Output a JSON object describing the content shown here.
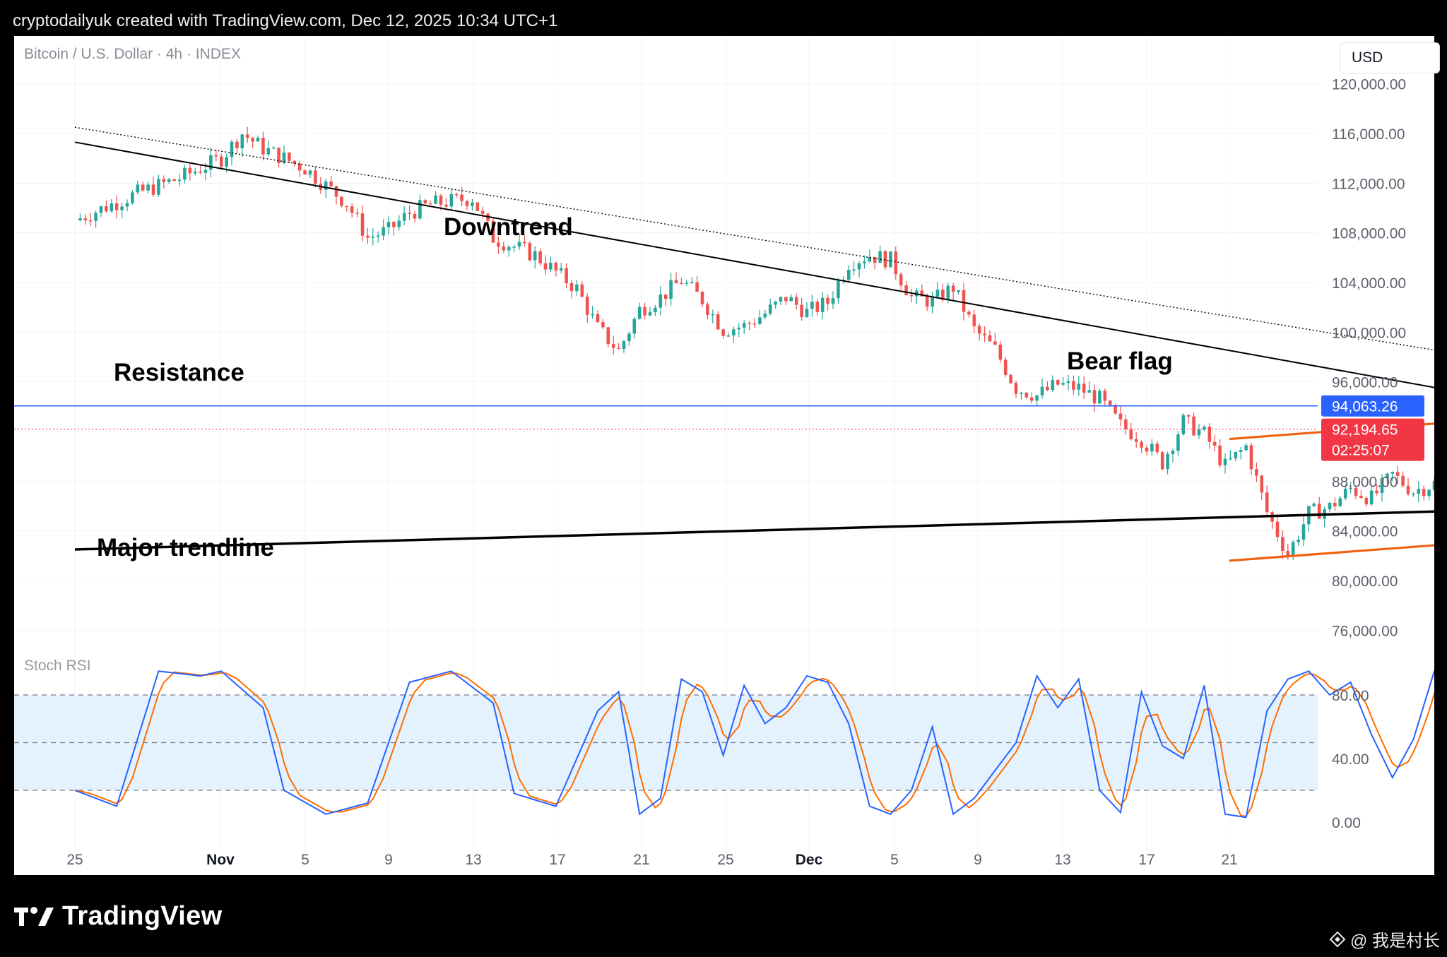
{
  "header": {
    "text": "cryptodailyuk created with TradingView.com, Dec 12, 2025 10:34 UTC+1"
  },
  "symbol_title": "Bitcoin / U.S. Dollar · 4h · INDEX",
  "currency_label": "USD",
  "footer": {
    "brand": "TradingView",
    "watermark": "@ 我是村长"
  },
  "colors": {
    "up": "#26a69a",
    "down": "#ef5350",
    "resistance": "#2962ff",
    "price_line": "#f23645",
    "bear_flag": "#f06010",
    "trend": "#000000",
    "stoch_k": "#2962ff",
    "stoch_d": "#ff6d00",
    "stoch_band": "#e3f2fd"
  },
  "chart_data": {
    "type": "candlestick",
    "timeframe": "4h",
    "x_tick_labels": [
      "25",
      "Nov",
      "5",
      "9",
      "13",
      "17",
      "21",
      "25",
      "Dec",
      "5",
      "9",
      "13",
      "17",
      "21"
    ],
    "y_ticks": [
      "76,000.00",
      "80,000.00",
      "84,000.00",
      "88,000.00",
      "96,000.00",
      "100,000.00",
      "104,000.00",
      "108,000.00",
      "112,000.00",
      "116,000.00",
      "120,000.00"
    ],
    "y_tick_values": [
      76000,
      80000,
      84000,
      88000,
      96000,
      100000,
      104000,
      108000,
      112000,
      116000,
      120000
    ],
    "ylim": [
      72000,
      122000
    ],
    "price_badges": {
      "resistance": "94,063.26",
      "last_price": "92,194.65",
      "countdown": "02:25:07"
    },
    "resistance_value": 94063.26,
    "last_value": 92194.65,
    "closes": [
      [
        21,
        109000
      ],
      [
        24,
        111200
      ],
      [
        26,
        112400
      ],
      [
        28,
        114000
      ],
      [
        29,
        116000
      ],
      [
        30,
        114800
      ],
      [
        32,
        113200
      ],
      [
        34,
        110400
      ],
      [
        35,
        107600
      ],
      [
        36,
        108200
      ],
      [
        37,
        109600
      ],
      [
        38,
        110300
      ],
      [
        40,
        110800
      ],
      [
        41,
        107600
      ],
      [
        43,
        106200
      ],
      [
        45,
        103500
      ],
      [
        46,
        100300
      ],
      [
        47,
        98500
      ],
      [
        48,
        101800
      ],
      [
        49,
        102800
      ],
      [
        50,
        104200
      ],
      [
        51,
        102600
      ],
      [
        52,
        100200
      ],
      [
        53,
        100500
      ],
      [
        54,
        101500
      ],
      [
        55,
        102800
      ],
      [
        56,
        101600
      ],
      [
        57,
        102400
      ],
      [
        58,
        105600
      ],
      [
        59,
        106200
      ],
      [
        60,
        105800
      ],
      [
        61,
        102800
      ],
      [
        62,
        102500
      ],
      [
        63,
        103600
      ],
      [
        64,
        100200
      ],
      [
        65,
        98600
      ],
      [
        66,
        95500
      ],
      [
        67,
        94900
      ],
      [
        68,
        95800
      ],
      [
        69,
        95500
      ],
      [
        70,
        94600
      ],
      [
        71,
        92500
      ],
      [
        72,
        91400
      ],
      [
        73,
        89500
      ],
      [
        74,
        92800
      ],
      [
        75,
        91800
      ],
      [
        76,
        89200
      ],
      [
        77,
        90800
      ],
      [
        78,
        85500
      ],
      [
        79,
        82100
      ],
      [
        80,
        85400
      ],
      [
        81,
        85900
      ],
      [
        82,
        87400
      ],
      [
        83,
        86600
      ],
      [
        84,
        88500
      ],
      [
        85,
        87200
      ],
      [
        86,
        87800
      ],
      [
        87,
        86900
      ],
      [
        88,
        91300
      ],
      [
        89,
        91100
      ],
      [
        90,
        92600
      ],
      [
        91,
        91100
      ],
      [
        92,
        90900
      ],
      [
        93,
        91200
      ],
      [
        94,
        91800
      ],
      [
        95,
        85800
      ],
      [
        96,
        84500
      ],
      [
        97,
        86800
      ],
      [
        98,
        91600
      ],
      [
        99,
        93300
      ],
      [
        100,
        93700
      ],
      [
        101,
        92500
      ],
      [
        102,
        92000
      ],
      [
        103,
        89800
      ],
      [
        104,
        89700
      ],
      [
        105,
        90000
      ],
      [
        106,
        89500
      ],
      [
        107,
        91400
      ],
      [
        108,
        91800
      ],
      [
        109,
        90400
      ],
      [
        110,
        90600
      ],
      [
        111,
        92800
      ],
      [
        112,
        92500
      ],
      [
        113,
        92300
      ],
      [
        114,
        90200
      ],
      [
        115,
        92800
      ],
      [
        115.7,
        92194.65
      ]
    ],
    "trendlines": [
      {
        "label": "Downtrend",
        "from": [
          21,
          115300
        ],
        "to": [
          125,
          83700
        ],
        "style": "solid"
      },
      {
        "label": "",
        "from": [
          21,
          116500
        ],
        "to": [
          125,
          87800
        ],
        "style": "dotted"
      },
      {
        "label": "Major trendline",
        "from": [
          21,
          82500
        ],
        "to": [
          125,
          87400
        ],
        "style": "solid-thick"
      }
    ],
    "channel": {
      "label": "Bear flag",
      "upper": {
        "from": [
          76.2,
          91400
        ],
        "to": [
          122,
          97200
        ]
      },
      "lower": {
        "from": [
          76.2,
          81600
        ],
        "to": [
          122,
          87400
        ]
      }
    },
    "annotations": [
      "Downtrend",
      "Resistance",
      "Bear flag",
      "Major trendline"
    ],
    "indicator": {
      "name": "Stoch RSI",
      "y_ticks": [
        "0.00",
        "40.00",
        "80.00"
      ],
      "y_tick_values": [
        0,
        40,
        80
      ],
      "levels": [
        20,
        50,
        80
      ],
      "ylim": [
        -10,
        105
      ],
      "k_keypoints": [
        [
          21,
          20
        ],
        [
          23,
          10
        ],
        [
          25,
          95
        ],
        [
          27,
          92
        ],
        [
          28,
          95
        ],
        [
          30,
          72
        ],
        [
          31,
          20
        ],
        [
          33,
          5
        ],
        [
          35,
          12
        ],
        [
          37,
          88
        ],
        [
          39,
          95
        ],
        [
          41,
          75
        ],
        [
          42,
          18
        ],
        [
          44,
          10
        ],
        [
          46,
          70
        ],
        [
          47,
          82
        ],
        [
          48,
          5
        ],
        [
          49,
          15
        ],
        [
          50,
          90
        ],
        [
          51,
          82
        ],
        [
          52,
          42
        ],
        [
          53,
          86
        ],
        [
          54,
          62
        ],
        [
          55,
          72
        ],
        [
          56,
          92
        ],
        [
          57,
          88
        ],
        [
          58,
          62
        ],
        [
          59,
          10
        ],
        [
          60,
          5
        ],
        [
          61,
          20
        ],
        [
          62,
          60
        ],
        [
          63,
          5
        ],
        [
          64,
          15
        ],
        [
          66,
          50
        ],
        [
          67,
          92
        ],
        [
          68,
          72
        ],
        [
          69,
          90
        ],
        [
          70,
          20
        ],
        [
          71,
          6
        ],
        [
          72,
          82
        ],
        [
          73,
          48
        ],
        [
          74,
          40
        ],
        [
          75,
          86
        ],
        [
          76,
          5
        ],
        [
          77,
          3
        ],
        [
          78,
          70
        ],
        [
          79,
          90
        ],
        [
          80,
          95
        ],
        [
          81,
          80
        ],
        [
          82,
          88
        ],
        [
          83,
          55
        ],
        [
          84,
          28
        ],
        [
          85,
          52
        ],
        [
          86,
          95
        ],
        [
          87,
          90
        ],
        [
          88,
          84
        ],
        [
          89,
          80
        ],
        [
          90,
          8
        ],
        [
          91,
          3
        ],
        [
          92,
          10
        ],
        [
          93,
          6
        ],
        [
          94,
          42
        ],
        [
          95,
          5
        ],
        [
          96,
          10
        ],
        [
          97,
          88
        ],
        [
          98,
          93
        ],
        [
          99,
          95
        ],
        [
          100,
          92
        ],
        [
          101,
          88
        ],
        [
          102,
          8
        ],
        [
          103,
          3
        ],
        [
          104,
          10
        ],
        [
          105,
          8
        ],
        [
          106,
          20
        ],
        [
          107,
          90
        ],
        [
          108,
          92
        ],
        [
          109,
          50
        ],
        [
          110,
          88
        ],
        [
          111,
          48
        ],
        [
          112,
          28
        ],
        [
          113,
          5
        ],
        [
          114,
          8
        ],
        [
          115.7,
          78
        ]
      ]
    }
  }
}
